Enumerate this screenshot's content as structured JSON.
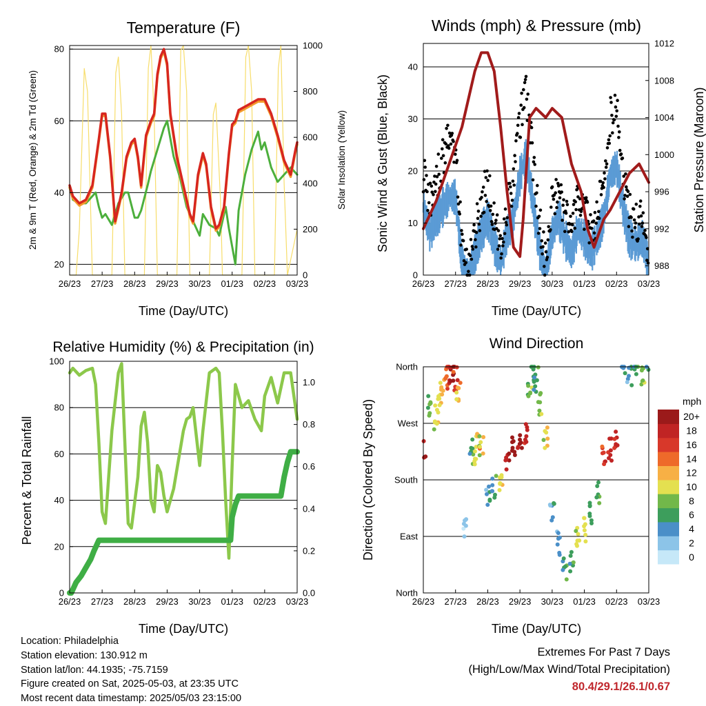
{
  "colors": {
    "red": "#d7261f",
    "orange": "#f39a2c",
    "green_td": "#4caf3c",
    "yellow": "#f7dd6a",
    "blue": "#5b9bd5",
    "black": "#000000",
    "maroon": "#a11b1b",
    "rh_green": "#8cc84b",
    "rain_green": "#3fae45",
    "extremes_red": "#c0272d"
  },
  "common": {
    "xlabel": "Time (Day/UTC)",
    "xticks": [
      "26/23",
      "27/23",
      "28/23",
      "29/23",
      "30/23",
      "01/23",
      "02/23",
      "03/23"
    ]
  },
  "panels": {
    "temperature": {
      "title": "Temperature (F)",
      "ylabel_left": "2m & 9m T (Red, Orange) & 2m Td (Green)",
      "ylabel_right": "Solar Insolation (Yellow)",
      "yticks_left": [
        "20",
        "40",
        "60",
        "80"
      ],
      "yticks_right": [
        "0",
        "200",
        "400",
        "600",
        "800",
        "1000"
      ]
    },
    "winds": {
      "title": "Winds (mph) & Pressure (mb)",
      "ylabel_left": "Sonic Wind & Gust (Blue, Black)",
      "ylabel_right": "Station Pressure (Maroon)",
      "yticks_left": [
        "0",
        "10",
        "20",
        "30",
        "40"
      ],
      "yticks_right": [
        "988",
        "992",
        "996",
        "1000",
        "1004",
        "1008",
        "1012"
      ]
    },
    "humidity": {
      "title": "Relative Humidity (%) & Precipitation (in)",
      "ylabel_left": "Percent & Total Rainfall",
      "yticks_left": [
        "0",
        "20",
        "40",
        "60",
        "80",
        "100"
      ],
      "yticks_right": [
        "0.0",
        "0.2",
        "0.4",
        "0.6",
        "0.8",
        "1.0"
      ]
    },
    "direction": {
      "title": "Wind Direction",
      "ylabel_left": "Direction (Colored By Speed)",
      "yticks_left": [
        "North",
        "East",
        "South",
        "West",
        "North"
      ],
      "colorbar_title": "mph",
      "colorbar_labels": [
        "0",
        "2",
        "4",
        "6",
        "8",
        "10",
        "12",
        "14",
        "16",
        "18",
        "20+"
      ],
      "colorbar_colors": [
        "#c6e8f8",
        "#8cc4e8",
        "#4a8fc8",
        "#3d9e5c",
        "#72b84a",
        "#e4e050",
        "#f7b045",
        "#ee6a2a",
        "#d8382a",
        "#c02424",
        "#9b1a1a"
      ]
    }
  },
  "chart_data": [
    {
      "type": "line",
      "title": "Temperature (F)",
      "xlabel": "Time (Day/UTC)",
      "ylabel": "2m & 9m T (Red, Orange) & 2m Td (Green)",
      "y2label": "Solar Insolation (Yellow)",
      "ylim": [
        17,
        81
      ],
      "y2lim": [
        0,
        1000
      ],
      "xlim": [
        0,
        7
      ],
      "series": [
        {
          "name": "2m T",
          "axis": "left",
          "x": [
            0,
            0.1,
            0.3,
            0.5,
            0.7,
            0.9,
            1.0,
            1.1,
            1.25,
            1.4,
            1.6,
            1.75,
            1.9,
            2.0,
            2.1,
            2.2,
            2.35,
            2.5,
            2.6,
            2.7,
            2.8,
            2.9,
            3.0,
            3.1,
            3.3,
            3.5,
            3.7,
            3.8,
            3.95,
            4.1,
            4.2,
            4.35,
            4.5,
            4.6,
            4.75,
            4.9,
            5.0,
            5.1,
            5.2,
            5.4,
            5.6,
            5.8,
            6.0,
            6.2,
            6.4,
            6.6,
            6.8,
            6.95,
            7.0
          ],
          "y": [
            42,
            39,
            37,
            38,
            42,
            55,
            62,
            62,
            50,
            32,
            40,
            50,
            54,
            55,
            50,
            42,
            56,
            60,
            62,
            73,
            78,
            80,
            76,
            62,
            50,
            42,
            34,
            32,
            45,
            51,
            48,
            36,
            30,
            31,
            36,
            51,
            59,
            60,
            63,
            64,
            65,
            66,
            66,
            62,
            56,
            49,
            45,
            52,
            54
          ]
        },
        {
          "name": "Solar Insolation",
          "axis": "right",
          "x": [
            0,
            0.2,
            0.3,
            0.45,
            0.55,
            0.7,
            1.3,
            1.42,
            1.5,
            1.6,
            1.7,
            2.3,
            2.42,
            2.5,
            2.6,
            2.7,
            3.3,
            3.42,
            3.5,
            3.6,
            3.7,
            4.3,
            4.42,
            4.5,
            4.55,
            4.65,
            4.7,
            5.3,
            5.42,
            5.5,
            5.6,
            5.7,
            6.3,
            6.42,
            6.5,
            6.6,
            6.7,
            7.0
          ],
          "y": [
            0,
            0,
            200,
            900,
            800,
            0,
            0,
            880,
            950,
            700,
            0,
            0,
            900,
            1000,
            700,
            0,
            0,
            980,
            1000,
            800,
            0,
            0,
            700,
            750,
            600,
            300,
            0,
            0,
            950,
            1000,
            800,
            0,
            0,
            900,
            1000,
            400,
            0,
            200
          ]
        },
        {
          "name": "2m Td",
          "axis": "left",
          "x": [
            0,
            0.1,
            0.3,
            0.5,
            0.8,
            0.9,
            1.0,
            1.1,
            1.3,
            1.5,
            1.7,
            1.8,
            2.0,
            2.1,
            2.2,
            2.4,
            2.5,
            2.7,
            2.9,
            3.0,
            3.2,
            3.4,
            3.5,
            3.6,
            3.8,
            4.0,
            4.1,
            4.3,
            4.5,
            4.6,
            4.8,
            4.9,
            5.0,
            5.1,
            5.2,
            5.4,
            5.6,
            5.8,
            5.9,
            6.0,
            6.2,
            6.4,
            6.6,
            6.8,
            7.0
          ],
          "y": [
            42,
            38,
            37,
            37,
            40,
            36,
            33,
            34,
            31,
            37,
            40,
            40,
            33,
            33,
            35,
            42,
            46,
            52,
            58,
            60,
            50,
            44,
            40,
            36,
            32,
            28,
            34,
            31,
            30,
            28,
            36,
            30,
            25,
            20,
            35,
            45,
            52,
            57,
            52,
            54,
            47,
            43,
            45,
            47,
            45
          ]
        }
      ]
    },
    {
      "type": "scatter",
      "title": "Winds (mph) & Pressure (mb)",
      "xlabel": "Time (Day/UTC)",
      "ylabel": "Sonic Wind & Gust (Blue, Black)",
      "y2label": "Station Pressure (Maroon)",
      "ylim": [
        0,
        44.5
      ],
      "y2lim": [
        987,
        1012
      ],
      "xlim": [
        0,
        7
      ],
      "series": [
        {
          "name": "Gust",
          "axis": "left",
          "x": [
            0,
            0.2,
            0.4,
            0.6,
            0.8,
            1.0,
            1.2,
            1.4,
            1.6,
            1.8,
            2.0,
            2.2,
            2.4,
            2.6,
            2.8,
            3.0,
            3.2,
            3.4,
            3.6,
            3.8,
            4.0,
            4.2,
            4.4,
            4.6,
            4.8,
            5.0,
            5.2,
            5.4,
            5.6,
            5.8,
            6.0,
            6.2,
            6.4,
            6.6,
            6.8,
            7.0
          ],
          "y": [
            20,
            14,
            18,
            22,
            26,
            25,
            5,
            0,
            8,
            14,
            18,
            10,
            5,
            14,
            18,
            30,
            35,
            22,
            10,
            2,
            14,
            18,
            12,
            8,
            15,
            12,
            8,
            12,
            18,
            30,
            32,
            20,
            12,
            10,
            12,
            4
          ]
        },
        {
          "name": "Wind",
          "axis": "left",
          "x": [
            0,
            0.2,
            0.4,
            0.6,
            0.8,
            1.0,
            1.2,
            1.4,
            1.6,
            1.8,
            2.0,
            2.2,
            2.4,
            2.6,
            2.8,
            3.0,
            3.2,
            3.4,
            3.6,
            3.8,
            4.0,
            4.2,
            4.4,
            4.6,
            4.8,
            5.0,
            5.2,
            5.4,
            5.6,
            5.8,
            6.0,
            6.2,
            6.4,
            6.6,
            6.8,
            7.0
          ],
          "y": [
            14,
            9,
            12,
            14,
            16,
            16,
            3,
            0,
            5,
            9,
            12,
            7,
            3,
            9,
            12,
            20,
            24,
            15,
            6,
            1,
            9,
            12,
            8,
            5,
            10,
            8,
            5,
            8,
            12,
            20,
            22,
            14,
            8,
            7,
            8,
            3
          ]
        },
        {
          "name": "Station Pressure",
          "axis": "right",
          "x": [
            0,
            0.4,
            0.8,
            1.2,
            1.6,
            1.8,
            2.0,
            2.2,
            2.4,
            2.6,
            2.8,
            3.0,
            3.1,
            3.3,
            3.5,
            3.8,
            4.0,
            4.3,
            4.6,
            4.9,
            5.1,
            5.3,
            5.6,
            5.8,
            6.1,
            6.4,
            6.7,
            7.0
          ],
          "y": [
            992,
            995,
            999,
            1003,
            1009,
            1011,
            1011,
            1009,
            1003,
            996,
            990,
            989,
            993,
            1004,
            1005,
            1004,
            1005,
            1004,
            999,
            996,
            992,
            990,
            993,
            994,
            996,
            998,
            999,
            997
          ]
        }
      ]
    },
    {
      "type": "line",
      "title": "Relative Humidity (%) & Precipitation (in)",
      "xlabel": "Time (Day/UTC)",
      "ylabel": "Percent & Total Rainfall",
      "ylim": [
        0,
        100
      ],
      "y2lim": [
        0,
        1.1
      ],
      "xlim": [
        0,
        7
      ],
      "series": [
        {
          "name": "Relative Humidity",
          "axis": "left",
          "x": [
            0,
            0.1,
            0.3,
            0.5,
            0.7,
            0.8,
            0.9,
            1.0,
            1.1,
            1.3,
            1.5,
            1.6,
            1.8,
            1.9,
            2.1,
            2.2,
            2.3,
            2.4,
            2.5,
            2.6,
            2.7,
            2.8,
            2.9,
            3.0,
            3.2,
            3.5,
            3.6,
            3.7,
            3.8,
            4.0,
            4.1,
            4.3,
            4.5,
            4.6,
            4.7,
            4.8,
            4.9,
            5.0,
            5.1,
            5.3,
            5.5,
            5.7,
            5.9,
            6.0,
            6.2,
            6.4,
            6.6,
            6.8,
            6.9,
            7.0
          ],
          "y": [
            95,
            97,
            94,
            96,
            97,
            90,
            65,
            35,
            30,
            70,
            95,
            99,
            30,
            28,
            50,
            72,
            78,
            65,
            40,
            35,
            55,
            52,
            42,
            35,
            45,
            70,
            75,
            76,
            80,
            55,
            70,
            95,
            97,
            95,
            70,
            40,
            15,
            55,
            90,
            80,
            83,
            75,
            70,
            85,
            93,
            82,
            95,
            95,
            85,
            75
          ]
        },
        {
          "name": "Total Rainfall",
          "axis": "right",
          "x": [
            0,
            0.05,
            0.2,
            0.35,
            0.5,
            0.65,
            0.75,
            0.9,
            1.0,
            2.0,
            3.0,
            4.0,
            4.95,
            5.0,
            5.1,
            5.2,
            6.0,
            6.5,
            6.6,
            6.7,
            6.8,
            7.0
          ],
          "y": [
            0,
            0,
            0.05,
            0.08,
            0.12,
            0.16,
            0.2,
            0.25,
            0.25,
            0.25,
            0.25,
            0.25,
            0.25,
            0.36,
            0.42,
            0.46,
            0.46,
            0.46,
            0.55,
            0.62,
            0.67,
            0.67
          ]
        }
      ]
    },
    {
      "type": "scatter",
      "title": "Wind Direction",
      "xlabel": "Time (Day/UTC)",
      "ylabel": "Direction (Colored By Speed)",
      "ylim": [
        0,
        360
      ],
      "xlim": [
        0,
        7
      ],
      "yticks": [
        "North",
        "East",
        "South",
        "West",
        "North"
      ],
      "colorbar": {
        "title": "mph",
        "labels": [
          "0",
          "2",
          "4",
          "6",
          "8",
          "10",
          "12",
          "14",
          "16",
          "18",
          "20+"
        ]
      },
      "series": [
        {
          "name": "Wind Direction",
          "x": [
            0,
            0.2,
            0.4,
            0.5,
            0.6,
            0.7,
            0.8,
            0.9,
            1.0,
            1.1,
            1.3,
            1.5,
            1.6,
            1.7,
            1.8,
            2.0,
            2.2,
            2.4,
            2.6,
            2.8,
            3.0,
            3.2,
            3.3,
            3.4,
            3.5,
            3.6,
            3.8,
            4.0,
            4.2,
            4.4,
            4.6,
            4.8,
            5.0,
            5.2,
            5.4,
            5.6,
            5.8,
            6.0,
            6.2,
            6.4,
            6.6,
            6.8,
            7.0
          ],
          "y": [
            230,
            300,
            280,
            300,
            320,
            340,
            350,
            355,
            340,
            320,
            100,
            240,
            220,
            240,
            230,
            160,
            170,
            180,
            210,
            230,
            240,
            250,
            330,
            355,
            340,
            300,
            250,
            130,
            80,
            40,
            50,
            90,
            100,
            130,
            160,
            220,
            230,
            240,
            360,
            350,
            355,
            340,
            360
          ],
          "speed": [
            18,
            8,
            10,
            10,
            12,
            14,
            18,
            20,
            16,
            12,
            2,
            6,
            10,
            12,
            10,
            4,
            6,
            10,
            18,
            20,
            20,
            18,
            8,
            6,
            6,
            8,
            10,
            4,
            4,
            6,
            6,
            10,
            10,
            6,
            6,
            16,
            18,
            18,
            4,
            4,
            6,
            8,
            6
          ]
        }
      ]
    }
  ],
  "info": {
    "location": "Location: Philadelphia",
    "elevation": "Station elevation: 130.912 m",
    "latlon": "Station lat/lon: 44.1935; -75.7159",
    "created": "Figure created on Sat, 2025-05-03, at 23:35 UTC",
    "recent": "Most recent data timestamp: 2025/05/03 23:15:00"
  },
  "extremes": {
    "line1": "Extremes For Past 7 Days",
    "line2": "(High/Low/Max Wind/Total Precipitation)",
    "values": "80.4/29.1/26.1/0.67"
  }
}
